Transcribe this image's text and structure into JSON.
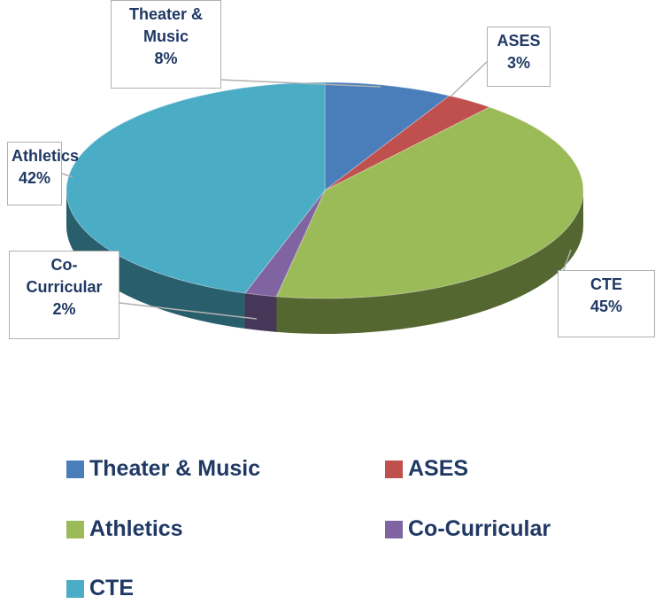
{
  "chart_data": {
    "type": "pie3d",
    "categories": [
      "Theater & Music",
      "ASES",
      "Athletics",
      "Co-Curricular",
      "CTE"
    ],
    "values": [
      8,
      3,
      42,
      2,
      45
    ],
    "value_labels": [
      "8%",
      "3%",
      "42%",
      "2%",
      "45%"
    ],
    "colors": [
      "#4a7ebb",
      "#c0504d",
      "#9bbb59",
      "#8064a2",
      "#4bacc6"
    ],
    "legend": "bottom"
  }
}
